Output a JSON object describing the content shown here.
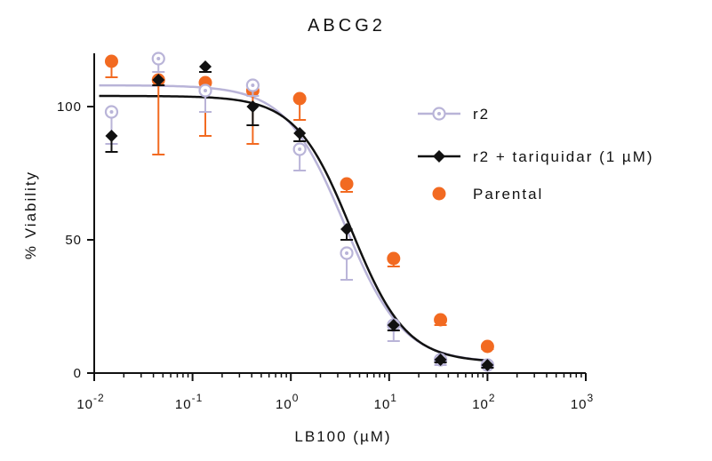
{
  "chart_data": {
    "type": "scatter",
    "title": "ABCG2",
    "xlabel": "LB100 (µM)",
    "ylabel": "% Viability",
    "x_scale": "log",
    "xlim": [
      0.01,
      1000
    ],
    "ylim": [
      0,
      120
    ],
    "x_ticks": [
      {
        "value": 0.01,
        "base": "10",
        "exp": "-2"
      },
      {
        "value": 0.1,
        "base": "10",
        "exp": "-1"
      },
      {
        "value": 1,
        "base": "10",
        "exp": "0"
      },
      {
        "value": 10,
        "base": "10",
        "exp": "1"
      },
      {
        "value": 100,
        "base": "10",
        "exp": "2"
      },
      {
        "value": 1000,
        "base": "10",
        "exp": "3"
      }
    ],
    "y_ticks": [
      0,
      50,
      100
    ],
    "grid": false,
    "legend_position": "right",
    "series": [
      {
        "name": "r2",
        "color": "#b9b4d8",
        "marker": "circle-dot",
        "x": [
          0.015,
          0.045,
          0.135,
          0.41,
          1.23,
          3.7,
          11.1,
          33.3,
          100
        ],
        "y": [
          98,
          118,
          106,
          108,
          84,
          45,
          18,
          5,
          3
        ],
        "err": [
          12,
          5,
          8,
          4,
          8,
          10,
          6,
          2,
          1
        ],
        "fit": {
          "top": 108,
          "bottom": 4,
          "ic50": 3.5,
          "hill": 1.45
        }
      },
      {
        "name": "r2 + tariquidar (1 µM)",
        "color": "#111111",
        "marker": "diamond",
        "x": [
          0.015,
          0.045,
          0.135,
          0.41,
          1.23,
          3.7,
          11.1,
          33.3,
          100
        ],
        "y": [
          89,
          110,
          115,
          100,
          90,
          54,
          18,
          5,
          3
        ],
        "err": [
          6,
          2,
          2,
          7,
          3,
          4,
          2,
          1,
          1
        ],
        "fit": {
          "top": 104,
          "bottom": 4,
          "ic50": 4.1,
          "hill": 1.55
        }
      },
      {
        "name": "Parental",
        "color": "#f26a21",
        "marker": "filled-circle",
        "x": [
          0.015,
          0.045,
          0.135,
          0.41,
          1.23,
          3.7,
          11.1,
          33.3,
          100
        ],
        "y": [
          117,
          110,
          109,
          106,
          103,
          71,
          43,
          20,
          10
        ],
        "err": [
          6,
          28,
          20,
          20,
          8,
          3,
          3,
          2,
          1
        ]
      }
    ]
  }
}
